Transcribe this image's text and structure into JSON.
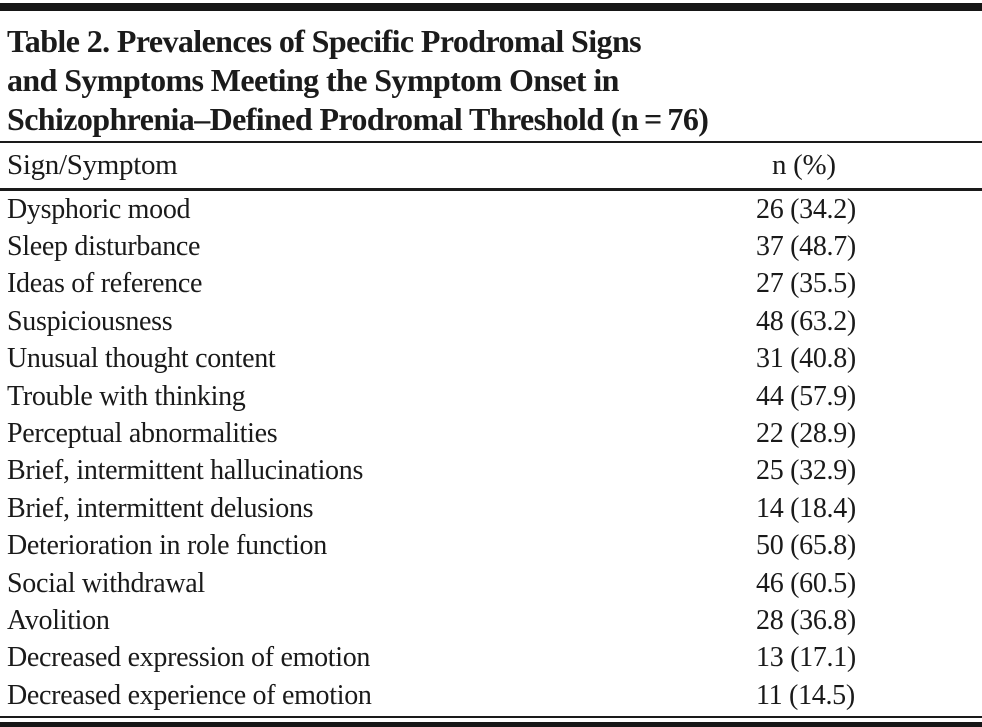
{
  "table": {
    "title_lines": [
      "Table 2. Prevalences of Specific Prodromal Signs",
      "and Symptoms Meeting the Symptom Onset in",
      "Schizophrenia–Defined Prodromal Threshold (n = 76)"
    ],
    "columns": {
      "sign_symptom": "Sign/Symptom",
      "n_pct": "n (%)"
    },
    "rows": [
      {
        "label": "Dysphoric mood",
        "value": "26 (34.2)"
      },
      {
        "label": "Sleep disturbance",
        "value": "37 (48.7)"
      },
      {
        "label": "Ideas of reference",
        "value": "27 (35.5)"
      },
      {
        "label": "Suspiciousness",
        "value": "48 (63.2)"
      },
      {
        "label": "Unusual thought content",
        "value": "31 (40.8)"
      },
      {
        "label": "Trouble with thinking",
        "value": "44 (57.9)"
      },
      {
        "label": "Perceptual abnormalities",
        "value": "22 (28.9)"
      },
      {
        "label": "Brief, intermittent hallucinations",
        "value": "25 (32.9)"
      },
      {
        "label": "Brief, intermittent delusions",
        "value": "14 (18.4)"
      },
      {
        "label": "Deterioration in role function",
        "value": "50 (65.8)"
      },
      {
        "label": "Social withdrawal",
        "value": "46 (60.5)"
      },
      {
        "label": "Avolition",
        "value": "28 (36.8)"
      },
      {
        "label": "Decreased expression of emotion",
        "value": "13 (17.1)"
      },
      {
        "label": "Decreased experience of emotion",
        "value": "11 (14.5)"
      }
    ]
  },
  "colors": {
    "text": "#1a1a1a",
    "rule": "#1a1a1a",
    "background": "#ffffff"
  }
}
